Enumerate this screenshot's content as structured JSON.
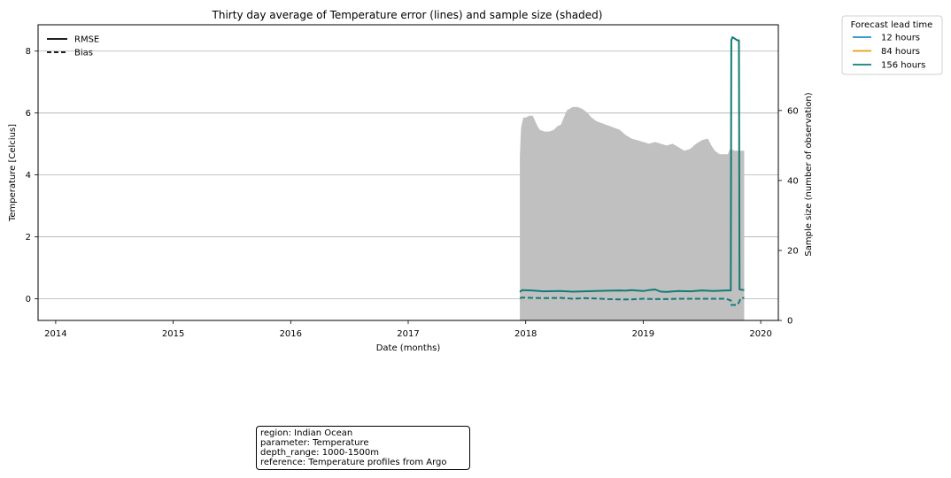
{
  "chart_data": {
    "type": "line",
    "title": "Thirty day average of Temperature error (lines) and sample size (shaded)",
    "xlabel": "Date (months)",
    "ylabel": "Temperature [Celcius]",
    "y2label": "Sample size (number of observation)",
    "x_ticks": [
      "2014",
      "2015",
      "2016",
      "2017",
      "2018",
      "2019",
      "2020"
    ],
    "xlim": [
      2013.85,
      2020.15
    ],
    "ylim": [
      -0.7,
      8.85
    ],
    "y_ticks": [
      0,
      2,
      4,
      6,
      8
    ],
    "y2lim": [
      0,
      84.5
    ],
    "y2_ticks": [
      0,
      20,
      40,
      60
    ],
    "grid": "horizontal",
    "style_legend": {
      "placement": "upper-left",
      "entries": [
        {
          "label": "RMSE",
          "style": "solid"
        },
        {
          "label": "Bias",
          "style": "dashed"
        }
      ]
    },
    "series_legend": {
      "title": "Forecast lead time",
      "placement": "outside-top-right",
      "entries": [
        {
          "label": "12 hours",
          "color": "#1f8ec4"
        },
        {
          "label": "84 hours",
          "color": "#e0a010"
        },
        {
          "label": "156 hours",
          "color": "#137b75"
        }
      ]
    },
    "sample_size": {
      "color": "#c0c0c0",
      "x": [
        2017.95,
        2017.96,
        2017.98,
        2018.0,
        2018.03,
        2018.06,
        2018.1,
        2018.12,
        2018.16,
        2018.2,
        2018.24,
        2018.27,
        2018.3,
        2018.35,
        2018.4,
        2018.44,
        2018.48,
        2018.52,
        2018.56,
        2018.6,
        2018.64,
        2018.68,
        2018.72,
        2018.76,
        2018.8,
        2018.85,
        2018.9,
        2018.95,
        2019.0,
        2019.05,
        2019.1,
        2019.15,
        2019.2,
        2019.25,
        2019.3,
        2019.35,
        2019.4,
        2019.45,
        2019.5,
        2019.55,
        2019.58,
        2019.61,
        2019.65,
        2019.7,
        2019.72,
        2019.74,
        2019.78,
        2019.82,
        2019.86
      ],
      "values": [
        47,
        55,
        58,
        58,
        58.5,
        58.5,
        55.5,
        54.5,
        54,
        54,
        54.5,
        55.5,
        56,
        60,
        61,
        61,
        60.5,
        59.5,
        58,
        57,
        56.5,
        56,
        55.5,
        55,
        54.5,
        53,
        52,
        51.5,
        51,
        50.5,
        51,
        50.5,
        50,
        50.5,
        49.5,
        48.5,
        49,
        50.5,
        51.5,
        52,
        50,
        48.5,
        47.5,
        47.5,
        47.5,
        49,
        48.5,
        48.5,
        48.5
      ]
    },
    "series": [
      {
        "lead": "156 hours",
        "metric": "RMSE",
        "color": "#137b75",
        "x": [
          2017.95,
          2017.97,
          2018.05,
          2018.15,
          2018.3,
          2018.4,
          2018.5,
          2018.6,
          2018.7,
          2018.8,
          2018.85,
          2018.9,
          2019.0,
          2019.05,
          2019.1,
          2019.15,
          2019.2,
          2019.3,
          2019.4,
          2019.5,
          2019.6,
          2019.7,
          2019.745,
          2019.75,
          2019.76,
          2019.78,
          2019.8,
          2019.815,
          2019.82,
          2019.86
        ],
        "values": [
          0.22,
          0.28,
          0.27,
          0.24,
          0.25,
          0.23,
          0.24,
          0.25,
          0.26,
          0.27,
          0.26,
          0.28,
          0.25,
          0.28,
          0.3,
          0.23,
          0.22,
          0.25,
          0.24,
          0.27,
          0.25,
          0.27,
          0.27,
          8.35,
          8.45,
          8.4,
          8.35,
          8.35,
          0.3,
          0.28
        ]
      },
      {
        "lead": "156 hours",
        "metric": "Bias",
        "color": "#137b75",
        "x": [
          2017.95,
          2017.97,
          2018.05,
          2018.15,
          2018.3,
          2018.4,
          2018.5,
          2018.6,
          2018.7,
          2018.8,
          2018.9,
          2019.0,
          2019.1,
          2019.2,
          2019.3,
          2019.4,
          2019.5,
          2019.6,
          2019.7,
          2019.745,
          2019.75,
          2019.8,
          2019.815,
          2019.83,
          2019.86
        ],
        "values": [
          0.02,
          0.04,
          0.03,
          0.02,
          0.03,
          0.0,
          0.02,
          0.01,
          -0.01,
          -0.02,
          -0.02,
          0.0,
          -0.01,
          -0.01,
          0.0,
          0.0,
          0.0,
          0.0,
          0.0,
          -0.05,
          -0.2,
          -0.2,
          -0.12,
          0.02,
          0.03
        ]
      }
    ]
  },
  "info_box": {
    "lines": [
      "region: Indian Ocean",
      "parameter: Temperature",
      "depth_range: 1000-1500m",
      "reference: Temperature profiles from Argo"
    ]
  }
}
